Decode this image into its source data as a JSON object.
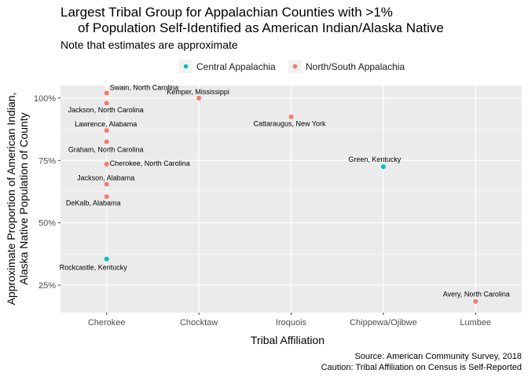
{
  "chart_data": {
    "type": "scatter",
    "title_line1": "Largest Tribal Group for Appalachian Counties with >1%",
    "title_line2": "of Population Self-Identified as American Indian/Alaska Native",
    "subtitle": "Note that estimates are approximate",
    "xlabel": "Tribal Affiliation",
    "ylabel_line1": "Approximate Proportion of American Indian,",
    "ylabel_line2": "Alaska Native Population of County",
    "categories": [
      "Cherokee",
      "Chocktaw",
      "Iroquois",
      "Chippewa/Ojibwe",
      "Lumbee"
    ],
    "ylim": [
      0.14,
      1.05
    ],
    "yticks": [
      0.25,
      0.5,
      0.75,
      1.0
    ],
    "ytick_labels": [
      "25%",
      "50%",
      "75%",
      "100%"
    ],
    "grid": true,
    "legend_position": "top",
    "series": [
      {
        "name": "Central Appalachia",
        "color": "#00BFC4"
      },
      {
        "name": "North/South Appalachia",
        "color": "#F8766D"
      }
    ],
    "points": [
      {
        "label": "Swain, North Carolina",
        "category": "Cherokee",
        "y": 1.02,
        "series": 1
      },
      {
        "label": "Jackson, North Carolina",
        "category": "Cherokee",
        "y": 0.98,
        "series": 1
      },
      {
        "label": "Lawrence, Alabama",
        "category": "Cherokee",
        "y": 0.87,
        "series": 1
      },
      {
        "label": "Graham, North Carolina",
        "category": "Cherokee",
        "y": 0.825,
        "series": 1
      },
      {
        "label": "Cherokee, North Carolina",
        "category": "Cherokee",
        "y": 0.735,
        "series": 1
      },
      {
        "label": "Jackson, Alabama",
        "category": "Cherokee",
        "y": 0.655,
        "series": 1
      },
      {
        "label": "DeKalb, Alabama",
        "category": "Cherokee",
        "y": 0.605,
        "series": 1
      },
      {
        "label": "Rockcastle, Kentucky",
        "category": "Cherokee",
        "y": 0.355,
        "series": 0
      },
      {
        "label": "Kemper, Mississippi",
        "category": "Chocktaw",
        "y": 1.0,
        "series": 1
      },
      {
        "label": "Cattaraugus, New York",
        "category": "Iroquois",
        "y": 0.925,
        "series": 1
      },
      {
        "label": "Green, Kentucky",
        "category": "Chippewa/Ojibwe",
        "y": 0.725,
        "series": 0
      },
      {
        "label": "Avery, North Carolina",
        "category": "Lumbee",
        "y": 0.185,
        "series": 1
      }
    ],
    "caption_line1": "Source: American Community Survey, 2018",
    "caption_line2": "Caution: Tribal Affiliation on Census is Self-Reported"
  }
}
